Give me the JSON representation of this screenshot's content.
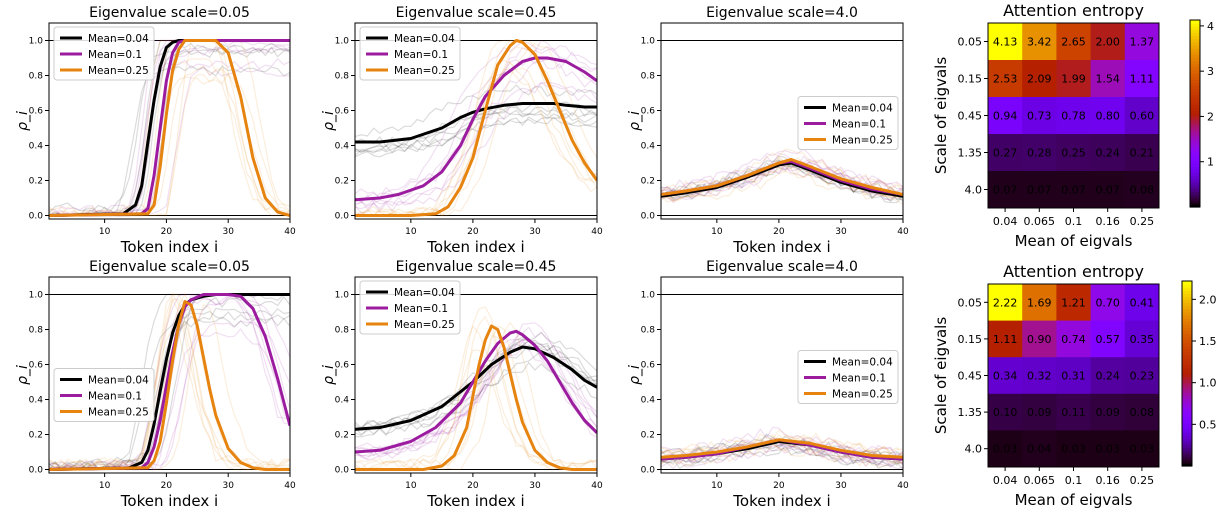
{
  "chart_data": [
    {
      "type": "line",
      "title": "Eigenvalue scale=0.05",
      "xlabel": "Token index i",
      "ylabel": "ρ_i",
      "xlim": [
        1,
        40
      ],
      "ylim": [
        -0.02,
        1.1
      ],
      "xticks": [
        "10",
        "20",
        "30",
        "40"
      ],
      "yticks": [
        "0.0",
        "0.2",
        "0.4",
        "0.6",
        "0.8",
        "1.0"
      ],
      "legend_position": "upper-left",
      "series": [
        {
          "name": "Mean=0.04",
          "color": "#000000",
          "x": [
            1,
            13,
            15,
            16,
            17,
            18,
            19,
            20,
            21,
            22,
            25,
            40
          ],
          "y": [
            0,
            0.01,
            0.06,
            0.17,
            0.42,
            0.66,
            0.85,
            0.96,
            0.99,
            1,
            1,
            1
          ]
        },
        {
          "name": "Mean=0.1",
          "color": "#9c1ca0",
          "x": [
            1,
            16,
            17,
            18,
            19,
            20,
            21,
            22,
            23,
            40
          ],
          "y": [
            0,
            0.01,
            0.04,
            0.23,
            0.5,
            0.77,
            0.93,
            0.99,
            1,
            1
          ]
        },
        {
          "name": "Mean=0.25",
          "color": "#e6840f",
          "x": [
            1,
            17,
            18,
            19,
            20,
            21,
            22,
            23,
            28,
            30,
            32,
            34,
            36,
            38,
            40
          ],
          "y": [
            0,
            0.01,
            0.06,
            0.28,
            0.58,
            0.83,
            0.95,
            1,
            1,
            0.93,
            0.68,
            0.33,
            0.1,
            0.02,
            0
          ]
        }
      ]
    },
    {
      "type": "line",
      "title": "Eigenvalue scale=0.45",
      "xlabel": "Token index i",
      "ylabel": "ρ_i",
      "xlim": [
        1,
        40
      ],
      "ylim": [
        -0.02,
        1.1
      ],
      "xticks": [
        "10",
        "20",
        "30",
        "40"
      ],
      "yticks": [
        "0.0",
        "0.2",
        "0.4",
        "0.6",
        "0.8",
        "1.0"
      ],
      "legend_position": "upper-left",
      "series": [
        {
          "name": "Mean=0.04",
          "color": "#000000",
          "x": [
            1,
            5,
            10,
            15,
            18,
            20,
            22,
            25,
            28,
            30,
            33,
            35,
            38,
            40
          ],
          "y": [
            0.42,
            0.42,
            0.44,
            0.5,
            0.56,
            0.59,
            0.61,
            0.63,
            0.64,
            0.64,
            0.64,
            0.63,
            0.62,
            0.62
          ]
        },
        {
          "name": "Mean=0.1",
          "color": "#9c1ca0",
          "x": [
            1,
            5,
            8,
            12,
            15,
            18,
            20,
            22,
            25,
            28,
            30,
            32,
            35,
            38,
            40
          ],
          "y": [
            0.09,
            0.1,
            0.12,
            0.17,
            0.25,
            0.4,
            0.55,
            0.68,
            0.8,
            0.88,
            0.9,
            0.9,
            0.88,
            0.82,
            0.77
          ]
        },
        {
          "name": "Mean=0.25",
          "color": "#e6840f",
          "x": [
            1,
            10,
            14,
            16,
            18,
            20,
            22,
            24,
            26,
            27,
            28,
            30,
            32,
            34,
            36,
            38,
            40
          ],
          "y": [
            0,
            0,
            0.01,
            0.05,
            0.16,
            0.33,
            0.6,
            0.86,
            0.97,
            1,
            0.99,
            0.92,
            0.77,
            0.6,
            0.43,
            0.3,
            0.2
          ]
        }
      ]
    },
    {
      "type": "line",
      "title": "Eigenvalue scale=4.0",
      "xlabel": "Token index i",
      "ylabel": "ρ_i",
      "xlim": [
        1,
        40
      ],
      "ylim": [
        -0.02,
        1.1
      ],
      "xticks": [
        "10",
        "20",
        "30",
        "40"
      ],
      "yticks": [
        "0.0",
        "0.2",
        "0.4",
        "0.6",
        "0.8",
        "1.0"
      ],
      "legend_position": "center-right",
      "series": [
        {
          "name": "Mean=0.04",
          "color": "#000000",
          "x": [
            1,
            5,
            10,
            15,
            20,
            22,
            25,
            30,
            35,
            40
          ],
          "y": [
            0.11,
            0.13,
            0.16,
            0.22,
            0.29,
            0.3,
            0.26,
            0.19,
            0.14,
            0.11
          ]
        },
        {
          "name": "Mean=0.1",
          "color": "#9c1ca0",
          "x": [
            1,
            5,
            10,
            15,
            20,
            22,
            25,
            30,
            35,
            40
          ],
          "y": [
            0.12,
            0.14,
            0.17,
            0.23,
            0.3,
            0.31,
            0.27,
            0.2,
            0.15,
            0.12
          ]
        },
        {
          "name": "Mean=0.25",
          "color": "#e6840f",
          "x": [
            1,
            5,
            10,
            15,
            20,
            22,
            25,
            30,
            35,
            40
          ],
          "y": [
            0.12,
            0.14,
            0.17,
            0.23,
            0.3,
            0.32,
            0.28,
            0.21,
            0.16,
            0.12
          ]
        }
      ]
    },
    {
      "type": "heatmap",
      "title": "Attention entropy",
      "xlabel": "Mean of eigvals",
      "ylabel": "Scale of eigvals",
      "x_categories": [
        "0.04",
        "0.065",
        "0.1",
        "0.16",
        "0.25"
      ],
      "y_categories": [
        "0.05",
        "0.15",
        "0.45",
        "1.35",
        "4.0"
      ],
      "values": [
        [
          4.13,
          3.42,
          2.65,
          2.0,
          1.37
        ],
        [
          2.53,
          2.09,
          1.99,
          1.54,
          1.11
        ],
        [
          0.94,
          0.73,
          0.78,
          0.8,
          0.6
        ],
        [
          0.27,
          0.28,
          0.25,
          0.24,
          0.21
        ],
        [
          0.07,
          0.07,
          0.07,
          0.07,
          0.08
        ]
      ],
      "labels": [
        [
          "4.13",
          "3.42",
          "2.65",
          "2.00",
          "1.37"
        ],
        [
          "2.53",
          "2.09",
          "1.99",
          "1.54",
          "1.11"
        ],
        [
          "0.94",
          "0.73",
          "0.78",
          "0.80",
          "0.60"
        ],
        [
          "0.27",
          "0.28",
          "0.25",
          "0.24",
          "0.21"
        ],
        [
          "0.07",
          "0.07",
          "0.07",
          "0.07",
          "0.08"
        ]
      ],
      "vmin": 0,
      "vmax": 4.13,
      "colorbar_ticks": [
        "1",
        "2",
        "3",
        "4"
      ],
      "colormap": "gnuplot"
    },
    {
      "type": "line",
      "title": "Eigenvalue scale=0.05",
      "xlabel": "Token index i",
      "ylabel": "ρ_i",
      "xlim": [
        1,
        40
      ],
      "ylim": [
        -0.02,
        1.1
      ],
      "xticks": [
        "10",
        "20",
        "30",
        "40"
      ],
      "yticks": [
        "0.0",
        "0.2",
        "0.4",
        "0.6",
        "0.8",
        "1.0"
      ],
      "legend_position": "center-left",
      "series": [
        {
          "name": "Mean=0.04",
          "color": "#000000",
          "x": [
            1,
            14,
            16,
            17,
            18,
            19,
            20,
            21,
            22,
            23,
            24,
            26,
            28,
            40
          ],
          "y": [
            0,
            0.01,
            0.04,
            0.11,
            0.26,
            0.45,
            0.63,
            0.78,
            0.88,
            0.94,
            0.97,
            0.99,
            1,
            1
          ]
        },
        {
          "name": "Mean=0.1",
          "color": "#9c1ca0",
          "x": [
            1,
            16,
            17,
            18,
            19,
            20,
            21,
            22,
            23,
            24,
            26,
            30,
            32,
            34,
            36,
            38,
            40
          ],
          "y": [
            0,
            0.01,
            0.04,
            0.13,
            0.28,
            0.48,
            0.67,
            0.83,
            0.93,
            0.97,
            1,
            1,
            0.99,
            0.92,
            0.76,
            0.52,
            0.25
          ]
        },
        {
          "name": "Mean=0.25",
          "color": "#e6840f",
          "x": [
            1,
            17,
            18,
            19,
            20,
            21,
            22,
            23,
            24,
            25,
            26,
            27,
            28,
            30,
            32,
            34,
            36,
            38,
            40
          ],
          "y": [
            0,
            0.01,
            0.05,
            0.16,
            0.38,
            0.62,
            0.83,
            0.96,
            0.94,
            0.82,
            0.64,
            0.46,
            0.31,
            0.12,
            0.04,
            0.01,
            0,
            0,
            0
          ]
        }
      ]
    },
    {
      "type": "line",
      "title": "Eigenvalue scale=0.45",
      "xlabel": "Token index i",
      "ylabel": "ρ_i",
      "xlim": [
        1,
        40
      ],
      "ylim": [
        -0.02,
        1.1
      ],
      "xticks": [
        "10",
        "20",
        "30",
        "40"
      ],
      "yticks": [
        "0.0",
        "0.2",
        "0.4",
        "0.6",
        "0.8",
        "1.0"
      ],
      "legend_position": "upper-left",
      "series": [
        {
          "name": "Mean=0.04",
          "color": "#000000",
          "x": [
            1,
            5,
            10,
            15,
            20,
            23,
            26,
            28,
            30,
            33,
            36,
            38,
            40
          ],
          "y": [
            0.23,
            0.24,
            0.28,
            0.36,
            0.5,
            0.6,
            0.67,
            0.7,
            0.69,
            0.64,
            0.57,
            0.51,
            0.47
          ]
        },
        {
          "name": "Mean=0.1",
          "color": "#9c1ca0",
          "x": [
            1,
            5,
            10,
            14,
            18,
            20,
            22,
            24,
            26,
            27,
            28,
            30,
            32,
            34,
            36,
            38,
            40
          ],
          "y": [
            0.1,
            0.11,
            0.16,
            0.24,
            0.38,
            0.5,
            0.62,
            0.72,
            0.78,
            0.79,
            0.77,
            0.71,
            0.62,
            0.5,
            0.38,
            0.28,
            0.21
          ]
        },
        {
          "name": "Mean=0.25",
          "color": "#e6840f",
          "x": [
            1,
            12,
            15,
            17,
            19,
            20,
            21,
            22,
            23,
            24,
            25,
            26,
            27,
            28,
            30,
            32,
            34,
            36,
            38,
            40
          ],
          "y": [
            0,
            0,
            0.02,
            0.08,
            0.24,
            0.42,
            0.6,
            0.74,
            0.82,
            0.8,
            0.7,
            0.55,
            0.4,
            0.27,
            0.11,
            0.04,
            0.01,
            0,
            0,
            0
          ]
        }
      ]
    },
    {
      "type": "line",
      "title": "Eigenvalue scale=4.0",
      "xlabel": "Token index i",
      "ylabel": "ρ_i",
      "xlim": [
        1,
        40
      ],
      "ylim": [
        -0.02,
        1.1
      ],
      "xticks": [
        "10",
        "20",
        "30",
        "40"
      ],
      "yticks": [
        "0.0",
        "0.2",
        "0.4",
        "0.6",
        "0.8",
        "1.0"
      ],
      "legend_position": "center-right",
      "series": [
        {
          "name": "Mean=0.04",
          "color": "#000000",
          "x": [
            1,
            5,
            10,
            15,
            20,
            25,
            30,
            35,
            40
          ],
          "y": [
            0.06,
            0.07,
            0.09,
            0.12,
            0.16,
            0.14,
            0.1,
            0.07,
            0.06
          ]
        },
        {
          "name": "Mean=0.1",
          "color": "#9c1ca0",
          "x": [
            1,
            5,
            10,
            15,
            20,
            25,
            30,
            35,
            40
          ],
          "y": [
            0.06,
            0.07,
            0.09,
            0.13,
            0.17,
            0.14,
            0.1,
            0.07,
            0.06
          ]
        },
        {
          "name": "Mean=0.25",
          "color": "#e6840f",
          "x": [
            1,
            5,
            10,
            15,
            20,
            25,
            30,
            35,
            40
          ],
          "y": [
            0.07,
            0.08,
            0.1,
            0.13,
            0.17,
            0.15,
            0.11,
            0.08,
            0.07
          ]
        }
      ]
    },
    {
      "type": "heatmap",
      "title": "Attention entropy",
      "xlabel": "Mean of eigvals",
      "ylabel": "Scale of eigvals",
      "x_categories": [
        "0.04",
        "0.065",
        "0.1",
        "0.16",
        "0.25"
      ],
      "y_categories": [
        "0.05",
        "0.15",
        "0.45",
        "1.35",
        "4.0"
      ],
      "values": [
        [
          2.22,
          1.69,
          1.21,
          0.7,
          0.41
        ],
        [
          1.11,
          0.9,
          0.74,
          0.57,
          0.35
        ],
        [
          0.34,
          0.32,
          0.31,
          0.24,
          0.23
        ],
        [
          0.1,
          0.09,
          0.11,
          0.09,
          0.08
        ],
        [
          0.03,
          0.04,
          0.03,
          0.03,
          0.03
        ]
      ],
      "labels": [
        [
          "2.22",
          "1.69",
          "1.21",
          "0.70",
          "0.41"
        ],
        [
          "1.11",
          "0.90",
          "0.74",
          "0.57",
          "0.35"
        ],
        [
          "0.34",
          "0.32",
          "0.31",
          "0.24",
          "0.23"
        ],
        [
          "0.10",
          "0.09",
          "0.11",
          "0.09",
          "0.08"
        ],
        [
          "0.03",
          "0.04",
          "0.03",
          "0.03",
          "0.03"
        ]
      ],
      "vmin": 0,
      "vmax": 2.22,
      "colorbar_ticks": [
        "0.5",
        "1.0",
        "1.5",
        "2.0"
      ],
      "colormap": "gnuplot"
    }
  ]
}
